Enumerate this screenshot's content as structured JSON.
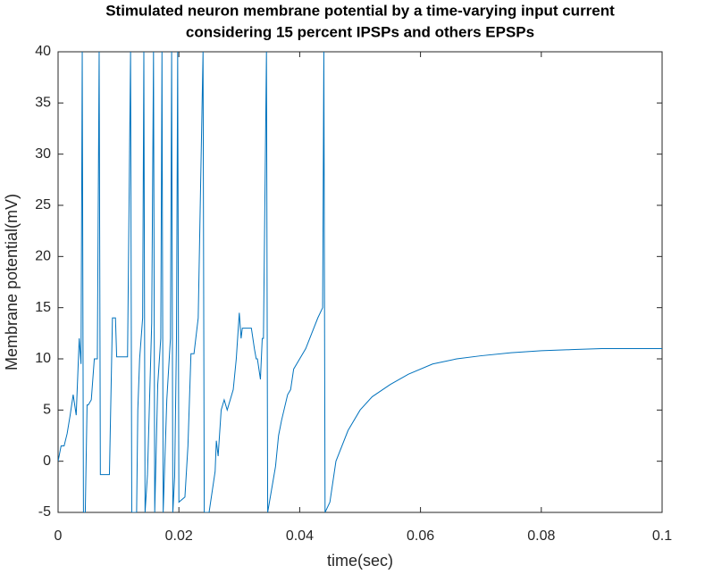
{
  "chart_data": {
    "type": "line",
    "title": [
      "Stimulated neuron membrane potential by a time-varying input current",
      "considering 15 percent IPSPs and others EPSPs"
    ],
    "xlabel": "time(sec)",
    "ylabel": "Membrane potential(mV)",
    "color": "#0072bd",
    "x": [
      0,
      0.0005,
      0.001,
      0.0015,
      0.002,
      0.0025,
      0.003,
      0.0035,
      0.0038,
      0.004,
      0.0042,
      0.0045,
      0.0048,
      0.005,
      0.0055,
      0.006,
      0.0065,
      0.0068,
      0.007,
      0.0085,
      0.009,
      0.0095,
      0.0097,
      0.0115,
      0.012,
      0.0122,
      0.013,
      0.0132,
      0.0135,
      0.014,
      0.0142,
      0.0144,
      0.0148,
      0.0155,
      0.0158,
      0.016,
      0.0165,
      0.017,
      0.0172,
      0.0174,
      0.018,
      0.0186,
      0.0188,
      0.019,
      0.0193,
      0.0196,
      0.0198,
      0.02,
      0.021,
      0.0215,
      0.022,
      0.0225,
      0.0232,
      0.024,
      0.0242,
      0.025,
      0.026,
      0.0262,
      0.0265,
      0.027,
      0.0275,
      0.028,
      0.029,
      0.0295,
      0.03,
      0.0303,
      0.0305,
      0.032,
      0.0325,
      0.0328,
      0.033,
      0.0335,
      0.0338,
      0.034,
      0.0345,
      0.0347,
      0.036,
      0.0365,
      0.037,
      0.038,
      0.0385,
      0.039,
      0.04,
      0.041,
      0.042,
      0.043,
      0.0438,
      0.044,
      0.0442,
      0.045,
      0.046,
      0.048,
      0.05,
      0.052,
      0.055,
      0.058,
      0.062,
      0.066,
      0.07,
      0.075,
      0.08,
      0.085,
      0.09,
      0.1
    ],
    "values": [
      0,
      1.5,
      1.5,
      2.7,
      4.5,
      6.5,
      4.5,
      12,
      9.5,
      40,
      -5,
      -5,
      5.5,
      5.5,
      6,
      10,
      10,
      40,
      -1.3,
      -1.3,
      14,
      14,
      10.2,
      10.2,
      40,
      -5,
      -5,
      5,
      10,
      14,
      40,
      -5,
      -1.3,
      13.5,
      40,
      -5,
      7.5,
      12,
      40,
      -5,
      6,
      12,
      40,
      -5,
      -1.5,
      12,
      40,
      -4,
      -3.5,
      1.5,
      10.5,
      10.5,
      14,
      40,
      -5,
      -5,
      -1,
      2,
      0.5,
      5,
      6,
      5,
      7,
      10,
      14.5,
      12,
      13,
      13,
      11,
      10,
      10,
      8,
      12,
      12,
      40,
      -5,
      -0.5,
      2.5,
      4,
      6.5,
      7,
      9,
      10,
      11,
      12.5,
      14,
      15,
      40,
      -5,
      -4,
      0,
      3,
      5,
      6.3,
      7.5,
      8.5,
      9.5,
      10,
      10.3,
      10.6,
      10.8,
      10.9,
      11,
      11
    ],
    "xlim": [
      0,
      0.1
    ],
    "ylim": [
      -5,
      40
    ],
    "xticks": [
      0,
      0.02,
      0.04,
      0.06,
      0.08,
      0.1
    ],
    "yticks": [
      -5,
      0,
      5,
      10,
      15,
      20,
      25,
      30,
      35,
      40
    ]
  }
}
